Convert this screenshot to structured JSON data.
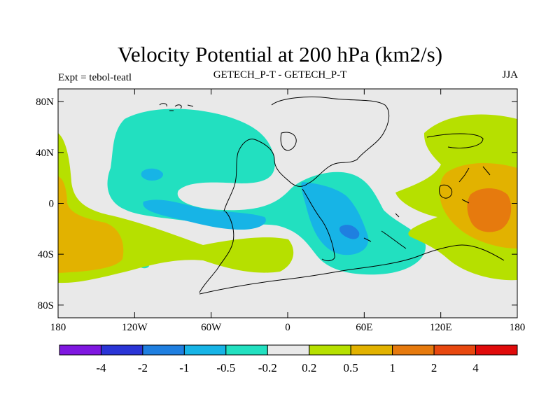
{
  "title": "Velocity Potential at 200 hPa (km2/s)",
  "left_label": "Expt = tebol-teatl",
  "center_label": "GETECH_P-T - GETECH_P-T",
  "right_label": "JJA",
  "map": {
    "lon_range": [
      -180,
      180
    ],
    "lat_range": [
      -90,
      90
    ],
    "lat_ticks": [
      {
        "value": 80,
        "label": "80N"
      },
      {
        "value": 40,
        "label": "40N"
      },
      {
        "value": 0,
        "label": "0"
      },
      {
        "value": -40,
        "label": "40S"
      },
      {
        "value": -80,
        "label": "80S"
      }
    ],
    "lon_ticks": [
      {
        "value": -180,
        "label": "180"
      },
      {
        "value": -120,
        "label": "120W"
      },
      {
        "value": -60,
        "label": "60W"
      },
      {
        "value": 0,
        "label": "0"
      },
      {
        "value": 60,
        "label": "60E"
      },
      {
        "value": 120,
        "label": "120E"
      },
      {
        "value": 180,
        "label": "180"
      }
    ],
    "background_color": "#e9e9e9"
  },
  "colorbar": {
    "colors": [
      "#7f17e0",
      "#2a34d6",
      "#1f7fe0",
      "#17b4e6",
      "#22e0c0",
      "#e9e9e9",
      "#b6e000",
      "#e2b200",
      "#e67a0e",
      "#e8480f",
      "#e00b0b"
    ],
    "labels": [
      "-4",
      "-2",
      "-1",
      "-0.5",
      "-0.2",
      "0.2",
      "0.5",
      "1",
      "2",
      "4"
    ]
  }
}
